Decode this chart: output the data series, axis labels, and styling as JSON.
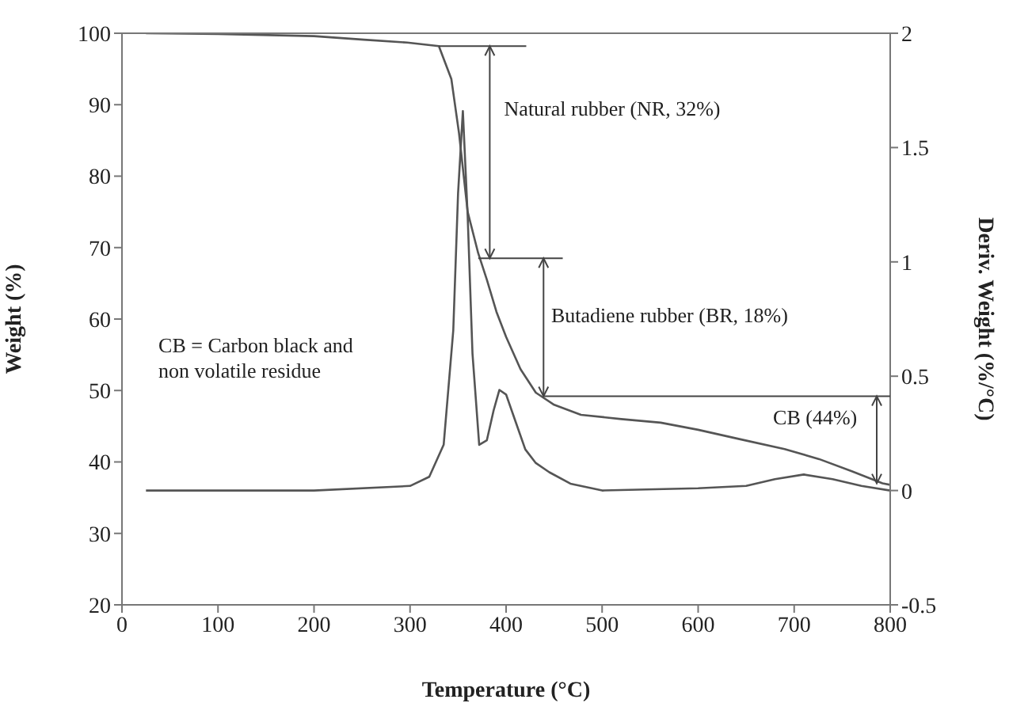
{
  "chart_data": {
    "type": "line",
    "xlabel": "Temperature (°C)",
    "ylabel": "Weight (%)",
    "y2label": "Deriv. Weight (%/°C)",
    "xlim": [
      0,
      800
    ],
    "xticks": [
      0,
      100,
      200,
      300,
      400,
      500,
      600,
      700,
      800
    ],
    "ylim": [
      20,
      100
    ],
    "yticks": [
      20,
      30,
      40,
      50,
      60,
      70,
      80,
      90,
      100
    ],
    "y2lim": [
      -0.5,
      2
    ],
    "y2ticks": [
      -0.5,
      0,
      0.5,
      1,
      1.5,
      2
    ],
    "grid": false,
    "ref_lines": [
      {
        "axis": "y",
        "value": 49.2,
        "color": "#444444"
      }
    ],
    "legend": false,
    "marker": "none",
    "line_style": "solid",
    "series": [
      {
        "color": "#555555",
        "x": [
          25,
          100,
          200,
          252,
          297,
          330,
          343,
          351,
          360,
          371,
          380,
          390,
          400,
          415,
          431,
          450,
          478,
          520,
          561,
          600,
          643,
          690,
          726,
          760,
          792,
          800
        ],
        "values": [
          100,
          99.9,
          99.6,
          99.1,
          98.7,
          98.2,
          93.6,
          86,
          75,
          69.2,
          65.5,
          61,
          57.5,
          53,
          49.7,
          48,
          46.6,
          46,
          45.5,
          44.5,
          43.2,
          41.8,
          40.4,
          38.7,
          37,
          36.8
        ]
      },
      {
        "color": "#555555",
        "axis": "y2",
        "x": [
          25,
          100,
          200,
          300,
          320,
          335,
          345,
          350,
          355,
          360,
          365,
          372,
          380,
          387,
          393,
          400,
          410,
          420,
          431,
          445,
          467,
          500,
          600,
          650,
          680,
          710,
          740,
          770,
          800
        ],
        "values": [
          0,
          0,
          0,
          0.02,
          0.06,
          0.2,
          0.7,
          1.3,
          1.66,
          1.2,
          0.6,
          0.2,
          0.22,
          0.35,
          0.44,
          0.42,
          0.3,
          0.18,
          0.12,
          0.08,
          0.03,
          0,
          0.01,
          0.02,
          0.05,
          0.07,
          0.05,
          0.02,
          0
        ]
      }
    ],
    "annotations": [
      "Natural rubber (NR,  32%)",
      "Butadiene rubber (BR, 18%)",
      {
        "text": "CB (44%)",
        "x": 786,
        "y": 37
      },
      "CB = Carbon black and\nnon volatile residue"
    ]
  }
}
